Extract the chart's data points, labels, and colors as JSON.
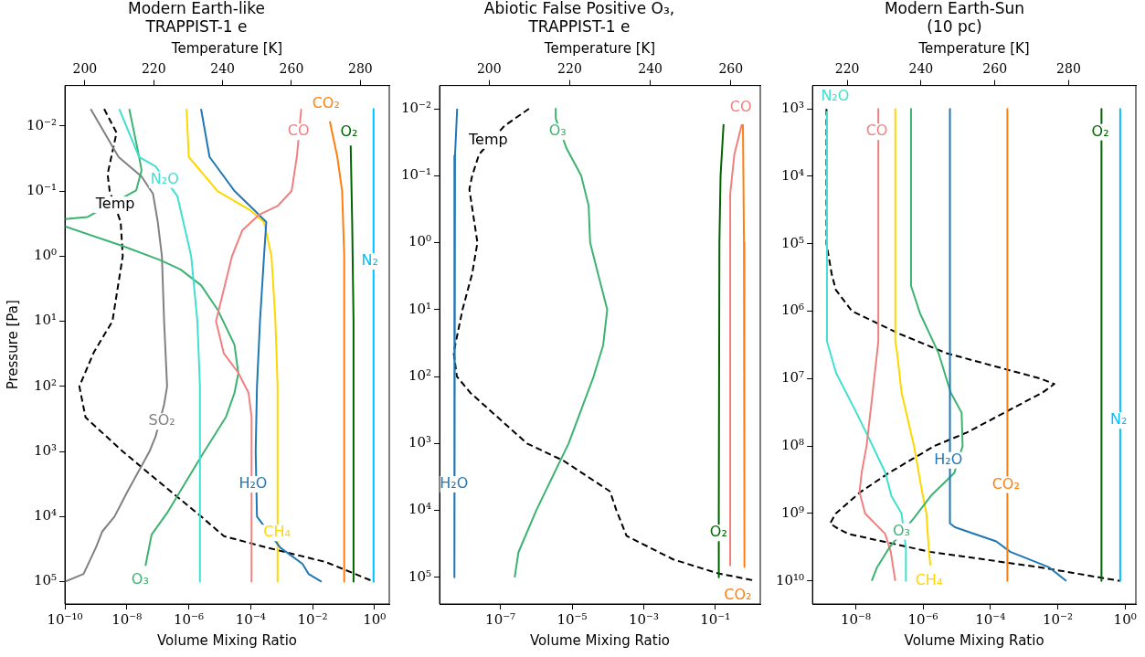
{
  "chart_data": [
    {
      "type": "line",
      "title": "Modern Earth-like\nTRAPPIST-1 e",
      "xlabel": "Volume Mixing Ratio",
      "ylabel": "Pressure [Pa]",
      "x2label": "Temperature [K]",
      "log": "xy",
      "legend": false,
      "xlim": [
        1e-10,
        3
      ],
      "xticks": [
        {
          "value": 1e-10,
          "label": "10⁻¹⁰"
        },
        {
          "value": 1e-08,
          "label": "10⁻⁸"
        },
        {
          "value": 1e-06,
          "label": "10⁻⁶"
        },
        {
          "value": 0.0001,
          "label": "10⁻⁴"
        },
        {
          "value": 0.01,
          "label": "10⁻²"
        },
        {
          "value": 1,
          "label": "10⁰"
        }
      ],
      "ylim": [
        220000,
        0.0024
      ],
      "yticks": [
        {
          "value": 0.01,
          "label": "10⁻²"
        },
        {
          "value": 0.1,
          "label": "10⁻¹"
        },
        {
          "value": 1,
          "label": "10⁰"
        },
        {
          "value": 10,
          "label": "10¹"
        },
        {
          "value": 100,
          "label": "10²"
        },
        {
          "value": 1000,
          "label": "10³"
        },
        {
          "value": 10000,
          "label": "10⁴"
        },
        {
          "value": 100000,
          "label": "10⁵"
        }
      ],
      "x2lim": [
        194.2,
        288.4
      ],
      "x2ticks": [
        200,
        220,
        240,
        260,
        280
      ],
      "series": [
        {
          "name": "N₂",
          "color": "#00bfff",
          "x": [
            0.93,
            0.93
          ],
          "values": [
            0.0055,
            100000
          ]
        },
        {
          "name": "O₂",
          "color": "#006400",
          "x": [
            0.17,
            0.19,
            0.21,
            0.21
          ],
          "values": [
            0.02,
            0.3,
            10,
            100000
          ]
        },
        {
          "name": "CO₂",
          "color": "#ff7f0e",
          "x": [
            0.036,
            0.063,
            0.09,
            0.105,
            0.105
          ],
          "values": [
            0.0085,
            0.03,
            0.1,
            1,
            100000
          ]
        },
        {
          "name": "CO",
          "color": "#f08080",
          "x": [
            0.0043,
            0.0031,
            0.0021,
            0.00074,
            0.00019,
            5.4e-05,
            2.5e-05,
            7.6e-06,
            1.35e-05,
            4e-05,
            8.5e-05,
            0.000107,
            0.000107
          ],
          "values": [
            0.0055,
            0.03,
            0.1,
            0.17,
            0.23,
            0.4,
            1,
            10,
            31,
            62,
            125,
            294,
            100000
          ]
        },
        {
          "name": "H₂O",
          "color": "#1f77b4",
          "x": [
            2.5e-06,
            4.7e-06,
            3e-05,
            0.000136,
            0.00032,
            0.00027,
            0.0002,
            0.00016,
            0.000145,
            0.00016,
            0.00091,
            0.0047,
            0.0074,
            0.0195
          ],
          "values": [
            0.0055,
            0.03,
            0.1,
            0.2,
            0.3,
            1,
            10,
            100,
            1000,
            10000,
            30000,
            53000,
            76000,
            100000
          ]
        },
        {
          "name": "CH₄",
          "color": "#ffd700",
          "x": [
            8.5e-07,
            1e-06,
            8.5e-06,
            0.0001,
            0.00027,
            0.00047,
            0.00063,
            0.00074,
            0.00074
          ],
          "values": [
            0.0055,
            0.03,
            0.1,
            0.2,
            0.3,
            1,
            10,
            100,
            100000
          ]
        },
        {
          "name": "N₂O",
          "color": "#40e0d0",
          "x": [
            5.7e-09,
            2.5e-08,
            8.5e-08,
            4.3e-07,
            1.2e-06,
            1.9e-06,
            2.3e-06,
            2.3e-06
          ],
          "values": [
            0.0055,
            0.03,
            0.042,
            0.12,
            1,
            10,
            100,
            100000
          ]
        },
        {
          "name": "O₃",
          "color": "#3cb371",
          "x": [
            1.2e-08,
            2.5e-08,
            3e-08,
            2e-08,
            5.4e-10,
            1e-10,
            null,
            1e-10,
            7.4e-09,
            1.2e-07,
            5.4e-07,
            2.5e-06,
            8.5e-06,
            3e-05,
            4e-05,
            3e-05,
            1.6e-05,
            2.5e-06,
            2.1e-07,
            6.3e-08,
            4e-08
          ],
          "values": [
            0.0055,
            0.03,
            0.048,
            0.098,
            0.25,
            0.27,
            null,
            0.35,
            0.7,
            1.15,
            1.6,
            2.8,
            6.6,
            23,
            63,
            126,
            294,
            1200,
            8500,
            19000,
            57000
          ]
        },
        {
          "name": "SO₂",
          "color": "#808080",
          "x": [
            6.8e-10,
            5.4e-09,
            3e-08,
            7e-08,
            1e-07,
            1.36e-07,
            1.6e-07,
            2e-07,
            1.6e-07,
            8.5e-08,
            5.4e-08,
            1e-08,
            4e-09,
            1.6e-09,
            1e-09,
            4e-10,
            1e-10
          ],
          "values": [
            0.0055,
            0.03,
            0.06,
            0.11,
            0.3,
            1,
            10,
            100,
            190,
            590,
            1000,
            4300,
            10000,
            17000,
            30000,
            76000,
            100000
          ]
        },
        {
          "name": "Temp",
          "color": "#000000",
          "axis": "x2",
          "line_style": "dashed",
          "x": [
            205.6,
            209.2,
            206.6,
            207.2,
            210.4,
            211,
            208,
            202.6,
            198.4,
            200.2,
            211,
            221.8,
            233.8,
            240.4,
            253,
            270,
            284
          ],
          "values": [
            0.0055,
            0.0127,
            0.055,
            0.1,
            0.3,
            1,
            10,
            30,
            100,
            300,
            1000,
            3000,
            10000,
            20000,
            30000,
            50000,
            100000
          ]
        }
      ]
    },
    {
      "type": "line",
      "title": "Abiotic False Positive O₃,\nTRAPPIST-1 e",
      "xlabel": "Volume Mixing Ratio",
      "x2label": "Temperature [K]",
      "log": "xy",
      "legend": false,
      "xlim": [
        2e-09,
        1.8
      ],
      "xticks": [
        {
          "value": 1e-07,
          "label": "10⁻⁷"
        },
        {
          "value": 1e-05,
          "label": "10⁻⁵"
        },
        {
          "value": 0.001,
          "label": "10⁻³"
        },
        {
          "value": 0.1,
          "label": "10⁻¹"
        }
      ],
      "ylim": [
        250000,
        0.0045
      ],
      "yticks": [
        {
          "value": 0.01,
          "label": "10⁻²"
        },
        {
          "value": 0.1,
          "label": "10⁻¹"
        },
        {
          "value": 1,
          "label": "10⁰"
        },
        {
          "value": 10,
          "label": "10¹"
        },
        {
          "value": 100,
          "label": "10²"
        },
        {
          "value": 1000,
          "label": "10³"
        },
        {
          "value": 10000,
          "label": "10⁴"
        },
        {
          "value": 100000,
          "label": "10⁵"
        }
      ],
      "x2lim": [
        187.7,
        267.3
      ],
      "x2ticks": [
        200,
        220,
        240,
        260
      ],
      "series": [
        {
          "name": "H₂O",
          "color": "#1f77b4",
          "x": [
            6.2e-09,
            5.4e-09,
            5.2e-09,
            5.2e-09
          ],
          "values": [
            0.01,
            0.05,
            0.1,
            100000
          ]
        },
        {
          "name": "O₃",
          "color": "#3cb371",
          "x": [
            3.5e-06,
            3.5e-06,
            7e-06,
            1.8e-05,
            2.9e-05,
            3.2e-05,
            5.3e-05,
            9.6e-05,
            7.4e-05,
            4e-05,
            8e-06,
            1e-06,
            3.2e-07,
            2.5e-07
          ],
          "values": [
            0.01,
            0.014,
            0.039,
            0.1,
            0.28,
            1,
            2.9,
            10,
            34,
            100,
            1000,
            10000,
            42000,
            100000
          ]
        },
        {
          "name": "O₂",
          "color": "#006400",
          "x": [
            0.17,
            0.14,
            0.13,
            0.125,
            0.125
          ],
          "values": [
            0.017,
            0.1,
            1,
            10000,
            100000
          ]
        },
        {
          "name": "CO",
          "color": "#f08080",
          "x": [
            0.55,
            0.34,
            0.26,
            0.26
          ],
          "values": [
            0.017,
            0.048,
            0.19,
            66000
          ]
        },
        {
          "name": "CO₂",
          "color": "#ff7f0e",
          "x": [
            0.59,
            0.63,
            0.65
          ],
          "values": [
            0.017,
            1,
            70000
          ]
        },
        {
          "name": "Temp",
          "color": "#000000",
          "axis": "x2",
          "line_style": "dashed",
          "x": [
            209.9,
            203.8,
            197.5,
            195.8,
            195.1,
            197.1,
            195.8,
            193.4,
            191.2,
            192,
            195.3,
            209.4,
            218.4,
            230,
            231.6,
            234.1,
            245.7,
            256.8,
            265.3
          ],
          "values": [
            0.01,
            0.018,
            0.048,
            0.1,
            0.16,
            1,
            2.9,
            10,
            44,
            100,
            174,
            1000,
            1800,
            5200,
            10000,
            24000,
            54000,
            87000,
            110000
          ]
        }
      ]
    },
    {
      "type": "line",
      "title": "Modern Earth-Sun\n(10 pc)",
      "xlabel": "Volume Mixing Ratio",
      "x2label": "Temperature [K]",
      "log": "xy",
      "legend": false,
      "xlim": [
        5.2e-10,
        2.1
      ],
      "xticks": [
        {
          "value": 1e-08,
          "label": "10⁻⁸"
        },
        {
          "value": 1e-06,
          "label": "10⁻⁶"
        },
        {
          "value": 0.0001,
          "label": "10⁻⁴"
        },
        {
          "value": 0.01,
          "label": "10⁻²"
        },
        {
          "value": 1,
          "label": "10⁰"
        }
      ],
      "ylim": [
        22000000000.0,
        450
      ],
      "yticks": [
        {
          "value": 1000,
          "label": "10³"
        },
        {
          "value": 10000,
          "label": "10⁴"
        },
        {
          "value": 100000,
          "label": "10⁵"
        },
        {
          "value": 1000000,
          "label": "10⁶"
        },
        {
          "value": 10000000,
          "label": "10⁷"
        },
        {
          "value": 100000000,
          "label": "10⁸"
        },
        {
          "value": 1000000000,
          "label": "10⁹"
        },
        {
          "value": 10000000000,
          "label": "10¹⁰"
        }
      ],
      "x2lim": [
        210.6,
        298.2
      ],
      "x2ticks": [
        220,
        240,
        260,
        280
      ],
      "series": [
        {
          "name": "N₂",
          "color": "#00bfff",
          "x": [
            0.72,
            0.72
          ],
          "values": [
            1000,
            10000000000.0
          ]
        },
        {
          "name": "O₂",
          "color": "#006400",
          "x": [
            0.2,
            0.2
          ],
          "values": [
            1000,
            10000000000.0
          ]
        },
        {
          "name": "CO₂",
          "color": "#ff7f0e",
          "x": [
            0.00032,
            0.00032
          ],
          "values": [
            1000,
            10000000000.0
          ]
        },
        {
          "name": "H₂O",
          "color": "#1f77b4",
          "x": [
            6.3e-06,
            6.3e-06,
            8.9e-06,
            0.00015,
            0.00039,
            0.0056,
            0.018
          ],
          "values": [
            1000,
            1400000000.0,
            1600000000.0,
            2600000000.0,
            3700000000.0,
            6300000000.0,
            10000000000.0
          ]
        },
        {
          "name": "O₃",
          "color": "#3cb371",
          "x": [
            4.4e-07,
            4.4e-07,
            8.1e-07,
            2.9e-06,
            6.6e-06,
            1.4e-05,
            1.5e-05,
            8.5e-06,
            1.7e-06,
            5.4e-07,
            1e-07,
            4.3e-08,
            3e-08
          ],
          "values": [
            1000,
            420000,
            1070000,
            4200000,
            16000000,
            32000000,
            100000000,
            250000000,
            550000000,
            1170000000,
            3200000000,
            6300000000,
            10000000000
          ]
        },
        {
          "name": "CH₄",
          "color": "#ffd700",
          "x": [
            1.5e-07,
            1.5e-07,
            1.7e-07,
            2.3e-07,
            5.4e-07,
            9.4e-07,
            1.26e-06,
            1.5e-06,
            1.66e-06
          ],
          "values": [
            1000,
            2800000,
            4200000,
            16000000,
            100000000,
            480000000,
            1000000000,
            3700000000,
            5900000000
          ]
        },
        {
          "name": "CO",
          "color": "#f08080",
          "x": [
            4.7e-08,
            4.7e-08,
            3.2e-08,
            2.1e-08,
            1.5e-08,
            1.3e-08,
            1.9e-08,
            7.5e-08,
            1.1e-07,
            1.5e-07
          ],
          "values": [
            1000,
            2800000,
            16000000,
            100000000,
            250000000,
            480000000,
            1000000000,
            2000000000,
            3700000000,
            10000000000
          ]
        },
        {
          "name": "N₂O",
          "color": "#40e0d0",
          "x": [
            1.4e-09,
            1.4e-09,
            2.6e-09,
            1.05e-08,
            3.2e-08,
            7.6e-08,
            1.15e-07,
            2.3e-07,
            3.1e-07,
            3.1e-07
          ],
          "values": [
            1100,
            2800000,
            8200000,
            32000000,
            100000000,
            250000000,
            550000000,
            1000000000,
            3200000000,
            10000000000
          ]
        },
        {
          "color": "#000000",
          "axis": "x2",
          "line_style": "dashed",
          "x": [
            214.4,
            214.4,
            215.8,
            216.9,
            221.3,
            233.6,
            246.9,
            272.4,
            276.1,
            273,
            252.4,
            243.6,
            231.3,
            223.6,
            216.9,
            215.4,
            216.9,
            220.2,
            242.4,
            272.4,
            293.9
          ],
          "values": [
            1000,
            100000,
            280000,
            480000,
            1000000,
            2100000,
            4200000,
            10000000,
            12000000,
            16000000,
            63000000,
            100000000,
            250000000,
            480000000,
            1000000000,
            1400000000,
            1600000000,
            2000000000,
            3700000000,
            6300000000,
            10000000000
          ]
        }
      ]
    }
  ]
}
